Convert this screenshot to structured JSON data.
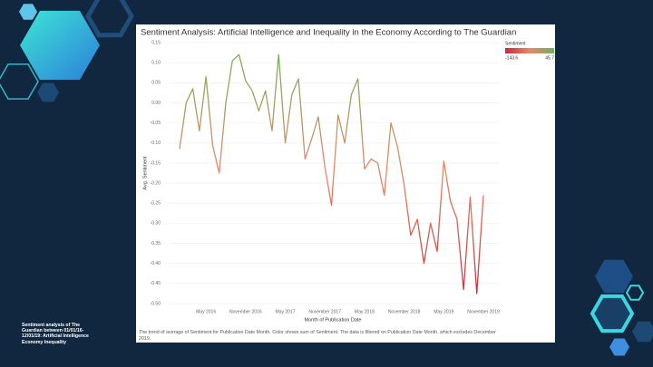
{
  "slide": {
    "caption": "Sentiment analysis of The Guardian between 01/01/16-12/01/19: Artificial Intelligence Economy Inequality"
  },
  "chart_data": {
    "type": "line",
    "title": "Sentiment Analysis: Artificial Intelligence and Inequality in the Economy According to The Guardian",
    "xlabel": "Month of Publication Date",
    "ylabel": "Avg. Sentiment",
    "note": "The trend of average of Sentiment for Publication Date Month.  Color shows sum of Sentiment. The data is filtered on Publication Date Month, which excludes December 2019.",
    "x": [
      "January 2016",
      "February 2016",
      "March 2016",
      "April 2016",
      "May 2016",
      "June 2016",
      "July 2016",
      "August 2016",
      "September 2016",
      "October 2016",
      "November 2016",
      "December 2016",
      "January 2017",
      "February 2017",
      "March 2017",
      "April 2017",
      "May 2017",
      "June 2017",
      "July 2017",
      "August 2017",
      "September 2017",
      "October 2017",
      "November 2017",
      "December 2017",
      "January 2018",
      "February 2018",
      "March 2018",
      "April 2018",
      "May 2018",
      "June 2018",
      "July 2018",
      "August 2018",
      "September 2018",
      "October 2018",
      "November 2018",
      "December 2018",
      "January 2019",
      "February 2019",
      "March 2019",
      "April 2019",
      "May 2019",
      "June 2019",
      "July 2019",
      "August 2019",
      "September 2019",
      "October 2019",
      "November 2019"
    ],
    "series": [
      {
        "values": [
          -0.115,
          0.0,
          0.035,
          -0.07,
          0.065,
          -0.105,
          -0.175,
          0.0,
          0.105,
          0.12,
          0.055,
          0.03,
          -0.02,
          0.03,
          -0.07,
          0.12,
          -0.1,
          0.02,
          0.06,
          -0.14,
          -0.09,
          -0.035,
          -0.16,
          -0.255,
          -0.03,
          -0.1,
          0.02,
          0.06,
          -0.165,
          -0.14,
          -0.15,
          -0.23,
          -0.05,
          -0.11,
          -0.205,
          -0.33,
          -0.29,
          -0.4,
          -0.3,
          -0.37,
          -0.145,
          -0.245,
          -0.29,
          -0.465,
          -0.235,
          -0.475,
          -0.23
        ]
      }
    ],
    "xticks": [
      "May 2016",
      "November 2016",
      "May 2017",
      "November 2017",
      "May 2018",
      "November 2018",
      "May 2019",
      "November 2019"
    ],
    "ylim": [
      -0.5,
      0.15
    ],
    "yticks": [
      0.15,
      {
        "value": 0.1,
        "label": "0.10"
      },
      0.05,
      {
        "value": 0,
        "label": "0.00"
      },
      -0.05,
      {
        "value": -0.1,
        "label": "-0.10"
      },
      -0.15,
      {
        "value": -0.2,
        "label": "-0.20"
      },
      -0.25,
      {
        "value": -0.3,
        "label": "-0.30"
      },
      -0.35,
      {
        "value": -0.4,
        "label": "-0.40"
      },
      -0.45,
      {
        "value": -0.5,
        "label": "-0.50"
      }
    ],
    "grid": true,
    "color_legend": {
      "title": "Sentiment",
      "min": -143.6,
      "max": 45.7,
      "colors": [
        "#c42b3a",
        "#e9866a",
        "#6db35a"
      ]
    }
  }
}
